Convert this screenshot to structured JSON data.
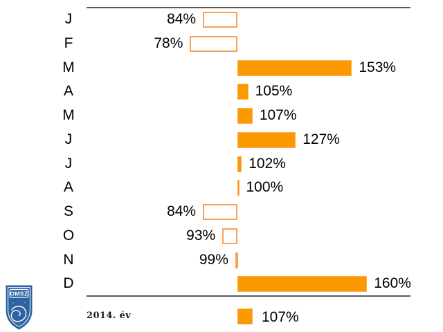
{
  "chart_data": {
    "type": "bar",
    "orientation": "horizontal",
    "baseline": 100,
    "unit": "%",
    "categories": [
      "J",
      "F",
      "M",
      "A",
      "M",
      "J",
      "J",
      "A",
      "S",
      "O",
      "N",
      "D"
    ],
    "values": [
      84,
      78,
      153,
      105,
      107,
      127,
      102,
      100,
      84,
      93,
      99,
      160
    ],
    "value_labels": [
      "84%",
      "78%",
      "153%",
      "105%",
      "107%",
      "127%",
      "102%",
      "100%",
      "84%",
      "93%",
      "99%",
      "160%"
    ],
    "summary": {
      "label": "2014. év",
      "value": 107,
      "value_label": "107%"
    },
    "axis": {
      "top_rule": true,
      "bottom_rule": true,
      "grid": false,
      "legend": false
    },
    "bar_style_rule": "values below 100% drawn as hollow outlined bars extending left of baseline; values at/above 100% drawn as solid filled bars extending right of baseline"
  },
  "colors": {
    "bar_fill": "#fb9900",
    "bar_fill_border": "#fbad53",
    "bar_hollow_border": "#f9a257",
    "axis_line": "#58595b",
    "text": "#000000",
    "logo_blue": "#2d64a0"
  },
  "logo": {
    "text": "OMSZ"
  }
}
